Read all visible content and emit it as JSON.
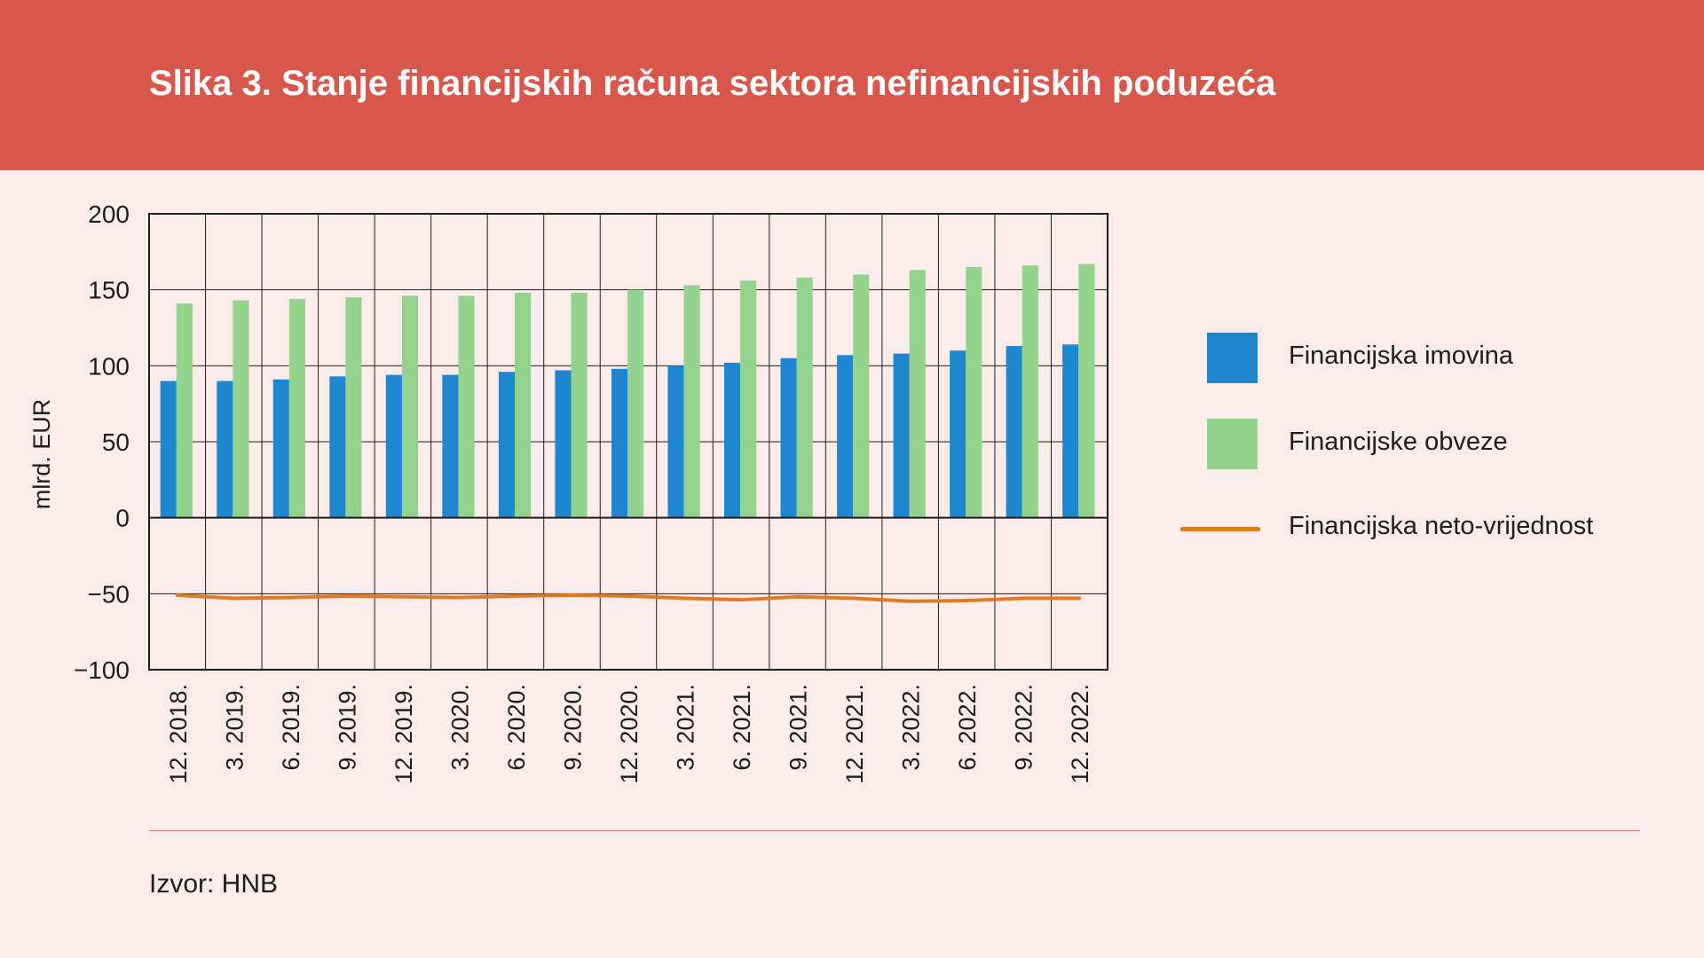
{
  "header": {
    "title": "Slika 3. Stanje financijskih računa sektora nefinancijskih poduzeća"
  },
  "source": "Izvor: HNB",
  "colors": {
    "header_bg": "#d8574b",
    "page_bg": "#fbecea",
    "assets": "#1d87d0",
    "liabilities": "#93d38e",
    "net": "#e07b25"
  },
  "chart_data": {
    "type": "bar",
    "ylabel": "mlrd. EUR",
    "ylim": [
      -100,
      200
    ],
    "yticks": [
      200,
      150,
      100,
      50,
      0,
      -50,
      -100
    ],
    "ytick_labels": [
      "200",
      "150",
      "100",
      "50",
      "0",
      "−50",
      "−100"
    ],
    "grid": true,
    "legend_position": "right",
    "categories": [
      "12. 2018.",
      "3. 2019.",
      "6. 2019.",
      "9. 2019.",
      "12. 2019.",
      "3. 2020.",
      "6. 2020.",
      "9. 2020.",
      "12. 2020.",
      "3. 2021.",
      "6. 2021.",
      "9. 2021.",
      "12. 2021.",
      "3. 2022.",
      "6. 2022.",
      "9. 2022.",
      "12. 2022."
    ],
    "series": [
      {
        "name": "Financijska imovina",
        "type": "bar",
        "values": [
          90,
          90,
          91,
          93,
          94,
          94,
          96,
          97,
          98,
          100,
          102,
          105,
          107,
          108,
          110,
          113,
          114
        ]
      },
      {
        "name": "Financijske obveze",
        "type": "bar",
        "values": [
          141,
          143,
          144,
          145,
          146,
          146,
          148,
          148,
          150,
          153,
          156,
          158,
          160,
          163,
          165,
          166,
          167
        ]
      },
      {
        "name": "Financijska neto-vrijednost",
        "type": "line",
        "values": [
          -51,
          -53,
          -52.5,
          -51.5,
          -52,
          -52.5,
          -51.5,
          -51,
          -51.5,
          -53,
          -54,
          -52,
          -53,
          -55,
          -54.5,
          -53,
          -53
        ]
      }
    ]
  }
}
